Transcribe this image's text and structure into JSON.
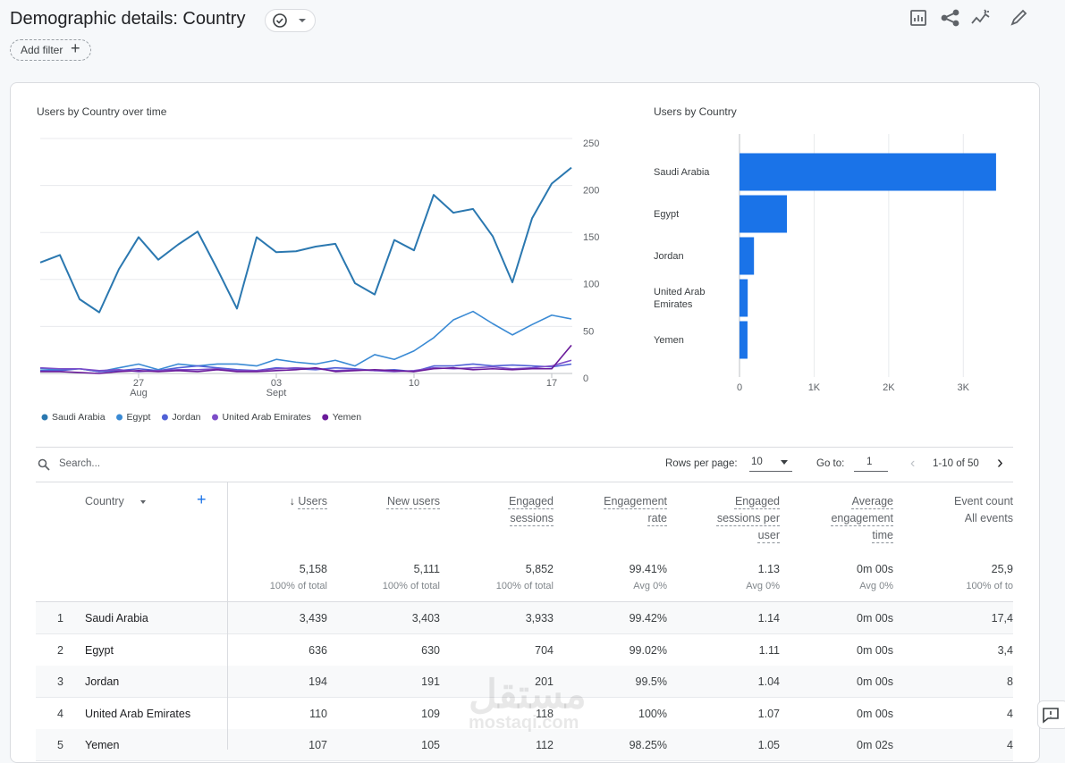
{
  "header": {
    "title": "Demographic details: Country",
    "add_filter": "Add filter"
  },
  "chart_data": [
    {
      "type": "line",
      "title": "Users by Country over time",
      "categories": [
        null,
        null,
        null,
        null,
        null,
        "27",
        null,
        null,
        null,
        null,
        null,
        null,
        "03",
        null,
        null,
        null,
        null,
        null,
        null,
        "10",
        null,
        null,
        null,
        null,
        null,
        null,
        "17",
        null
      ],
      "category_months": [
        null,
        null,
        null,
        null,
        null,
        "Aug",
        null,
        null,
        null,
        null,
        null,
        null,
        "Sept",
        null,
        null,
        null,
        null,
        null,
        null,
        null,
        null,
        null,
        null,
        null,
        null,
        null,
        null,
        null
      ],
      "series": [
        {
          "name": "Saudi Arabia",
          "color": "#2b78b0",
          "values": [
            118,
            126,
            79,
            65,
            111,
            145,
            121,
            137,
            151,
            111,
            69,
            145,
            129,
            130,
            135,
            138,
            96,
            84,
            142,
            131,
            190,
            171,
            175,
            146,
            97,
            165,
            202,
            219
          ]
        },
        {
          "name": "Egypt",
          "color": "#3a8ad4",
          "values": [
            5,
            4,
            5,
            2,
            6,
            10,
            4,
            10,
            8,
            10,
            10,
            8,
            15,
            12,
            10,
            14,
            8,
            20,
            15,
            24,
            38,
            57,
            66,
            53,
            41,
            52,
            62,
            58
          ]
        },
        {
          "name": "Jordan",
          "color": "#5061d6",
          "values": [
            3,
            3,
            5,
            2,
            3,
            5,
            3,
            6,
            8,
            6,
            4,
            3,
            6,
            5,
            4,
            6,
            5,
            3,
            4,
            2,
            8,
            8,
            10,
            8,
            9,
            8,
            7,
            10
          ]
        },
        {
          "name": "United Arab Emirates",
          "color": "#7c4dc8",
          "values": [
            6,
            5,
            5,
            3,
            4,
            2,
            3,
            4,
            4,
            5,
            3,
            3,
            5,
            6,
            5,
            3,
            4,
            3,
            2,
            3,
            6,
            5,
            6,
            7,
            5,
            6,
            8,
            14
          ]
        },
        {
          "name": "Yemen",
          "color": "#6a1b9a",
          "values": [
            2,
            2,
            1,
            0,
            2,
            3,
            2,
            3,
            2,
            4,
            2,
            2,
            3,
            4,
            6,
            2,
            3,
            4,
            3,
            2,
            5,
            6,
            4,
            5,
            4,
            5,
            5,
            30
          ]
        }
      ],
      "ylim": [
        0,
        250
      ],
      "yticks": [
        0,
        50,
        100,
        150,
        200,
        250
      ],
      "grid": true,
      "legend": "bottom"
    },
    {
      "type": "bar",
      "orientation": "horizontal",
      "title": "Users by Country",
      "categories": [
        "Saudi Arabia",
        "Egypt",
        "Jordan",
        "United Arab Emirates",
        "Yemen"
      ],
      "values": [
        3439,
        636,
        194,
        110,
        107
      ],
      "color": "#1a73e8",
      "xlim": [
        0,
        3500
      ],
      "xticks": [
        0,
        {
          "value": 1000,
          "label": "1K"
        },
        {
          "value": 2000,
          "label": "2K"
        },
        {
          "value": 3000,
          "label": "3K"
        }
      ],
      "grid": true
    }
  ],
  "table": {
    "search_placeholder": "Search...",
    "rows_per_page_label": "Rows per page:",
    "rows_per_page": "10",
    "go_to_label": "Go to:",
    "go_to": "1",
    "pagination": "1-10 of 50",
    "columns": [
      {
        "label": "Country"
      },
      {
        "label": "Users"
      },
      {
        "label": "New users"
      },
      {
        "label": "Engaged sessions"
      },
      {
        "label": "Engagement rate"
      },
      {
        "label": "Engaged sessions per user"
      },
      {
        "label": "Average engagement time"
      },
      {
        "label": "Event count",
        "sublabel": "All events"
      }
    ],
    "totals": [
      [
        "5,158",
        "100% of total"
      ],
      [
        "5,111",
        "100% of total"
      ],
      [
        "5,852",
        "100% of total"
      ],
      [
        "99.41%",
        "Avg 0%"
      ],
      [
        "1.13",
        "Avg 0%"
      ],
      [
        "0m 00s",
        "Avg 0%"
      ],
      [
        "25,9",
        "100% of to"
      ]
    ],
    "rows": [
      [
        "1",
        "Saudi Arabia",
        "3,439",
        "3,403",
        "3,933",
        "99.42%",
        "1.14",
        "0m 00s",
        "17,4"
      ],
      [
        "2",
        "Egypt",
        "636",
        "630",
        "704",
        "99.02%",
        "1.11",
        "0m 00s",
        "3,4"
      ],
      [
        "3",
        "Jordan",
        "194",
        "191",
        "201",
        "99.5%",
        "1.04",
        "0m 00s",
        "8"
      ],
      [
        "4",
        "United Arab Emirates",
        "110",
        "109",
        "118",
        "100%",
        "1.07",
        "0m 00s",
        "4"
      ],
      [
        "5",
        "Yemen",
        "107",
        "105",
        "112",
        "98.25%",
        "1.05",
        "0m 02s",
        "4"
      ]
    ]
  },
  "watermark": {
    "arabic": "مستقل",
    "latin": "mostaqi.com"
  }
}
